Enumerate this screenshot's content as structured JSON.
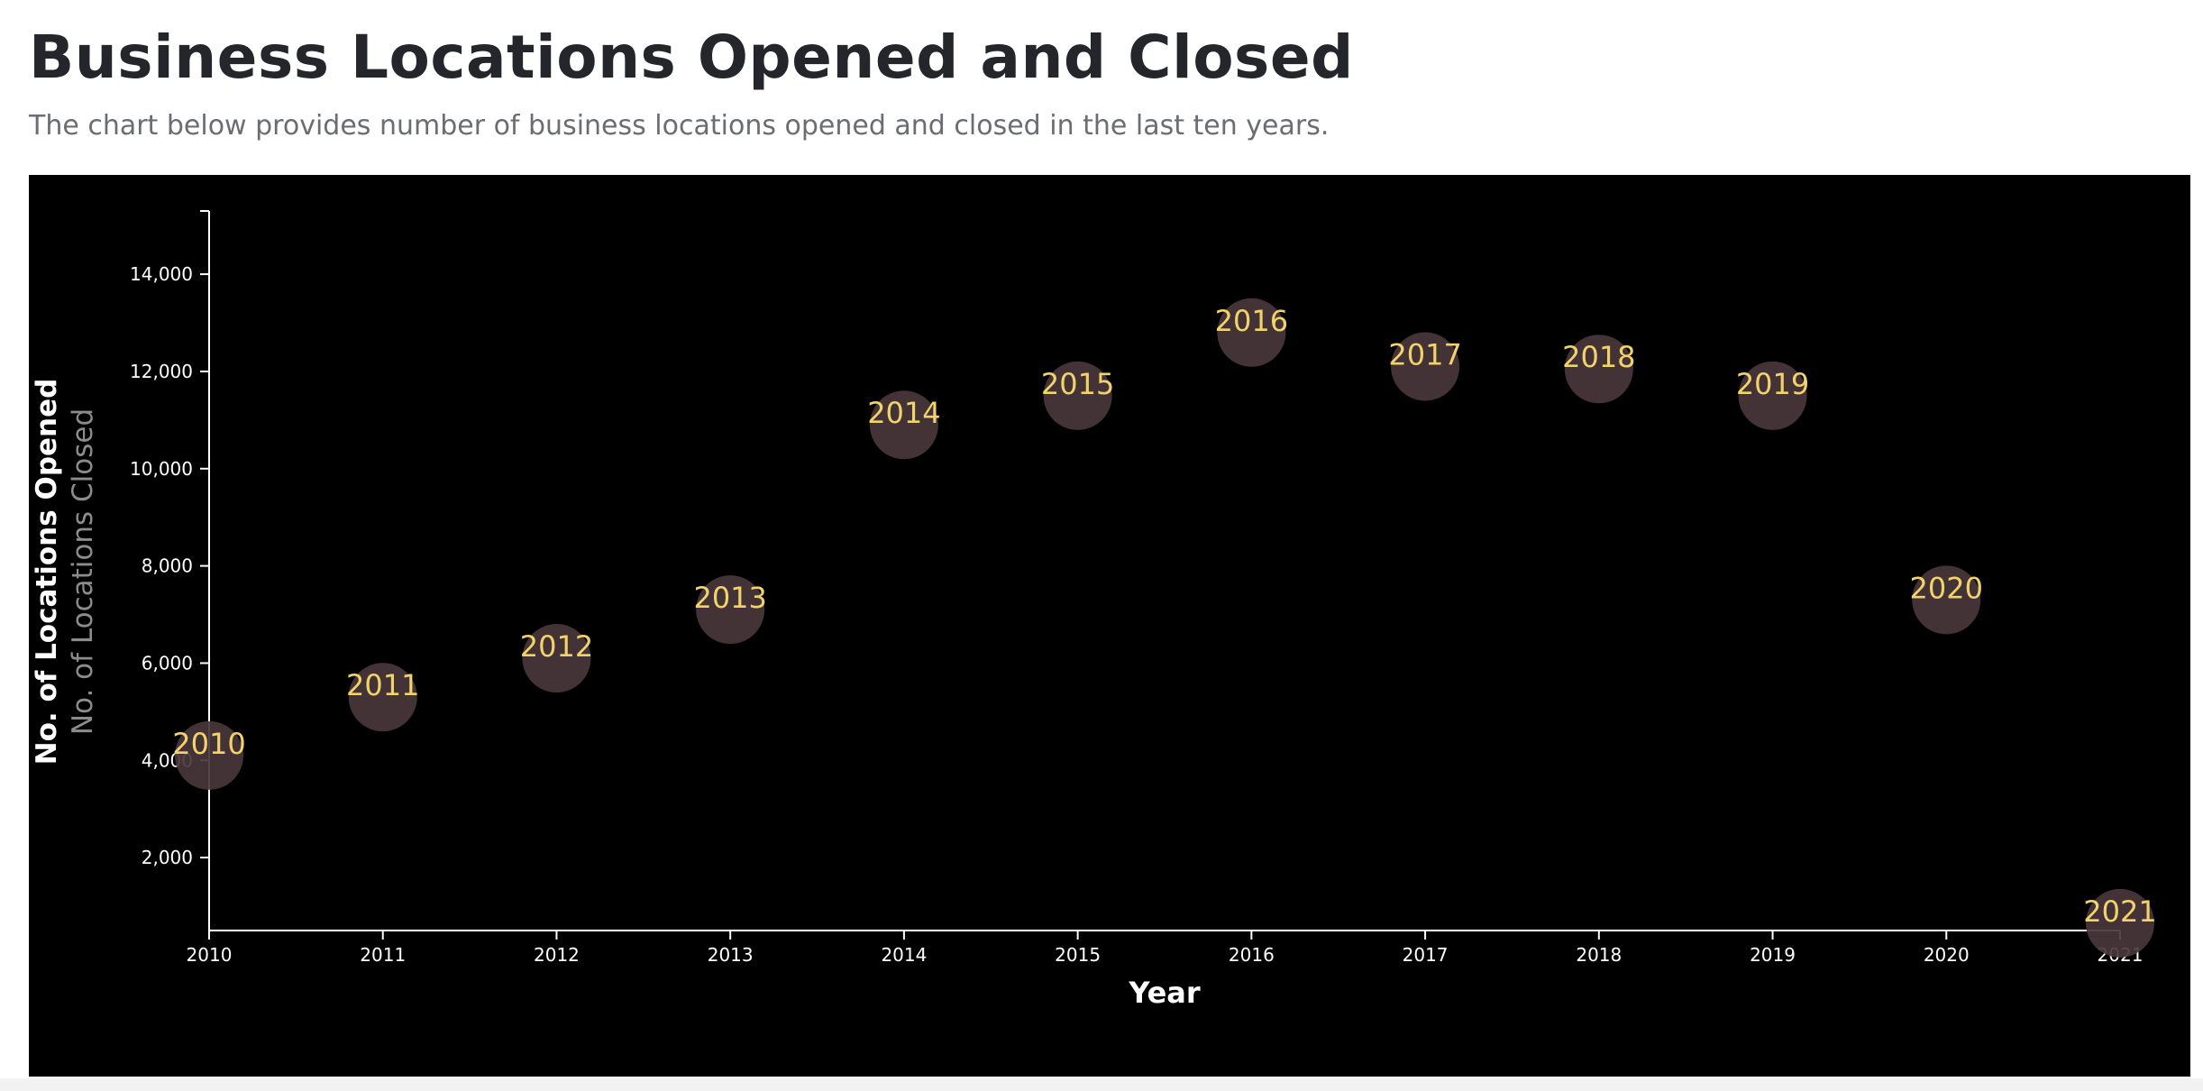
{
  "header": {
    "title": "Business Locations Opened and Closed",
    "subtitle": "The chart below provides number of business locations opened and closed in the last ten years."
  },
  "colors": {
    "panel_background": "#000000",
    "axis": "#ffffff",
    "tick_text": "#ffffff",
    "bubble_fill": "#4a373b",
    "bubble_label": "#f2d36b",
    "ylabel_secondary": "#8c8c8c"
  },
  "chart_data": {
    "type": "scatter",
    "xlabel": "Year",
    "ylabel": "No. of Locations Opened",
    "ylabel_secondary": "No. of Locations Closed",
    "xlim": [
      2010,
      2021
    ],
    "ylim": [
      500,
      15300
    ],
    "x_ticks": [
      "2010",
      "2011",
      "2012",
      "2013",
      "2014",
      "2015",
      "2016",
      "2017",
      "2018",
      "2019",
      "2020",
      "2021"
    ],
    "y_ticks": [
      2000,
      4000,
      6000,
      8000,
      10000,
      12000,
      14000
    ],
    "y_tick_labels": [
      "2,000",
      "4,000",
      "6,000",
      "8,000",
      "10,000",
      "12,000",
      "14,000"
    ],
    "grid": false,
    "legend": "none",
    "points": [
      {
        "x": 2010,
        "y": 4100,
        "label": "2010"
      },
      {
        "x": 2011,
        "y": 5300,
        "label": "2011"
      },
      {
        "x": 2012,
        "y": 6100,
        "label": "2012"
      },
      {
        "x": 2013,
        "y": 7100,
        "label": "2013"
      },
      {
        "x": 2014,
        "y": 10900,
        "label": "2014"
      },
      {
        "x": 2015,
        "y": 11500,
        "label": "2015"
      },
      {
        "x": 2016,
        "y": 12800,
        "label": "2016"
      },
      {
        "x": 2017,
        "y": 12100,
        "label": "2017"
      },
      {
        "x": 2018,
        "y": 12050,
        "label": "2018"
      },
      {
        "x": 2019,
        "y": 11500,
        "label": "2019"
      },
      {
        "x": 2020,
        "y": 7300,
        "label": "2020"
      },
      {
        "x": 2021,
        "y": 650,
        "label": "2021"
      }
    ]
  }
}
